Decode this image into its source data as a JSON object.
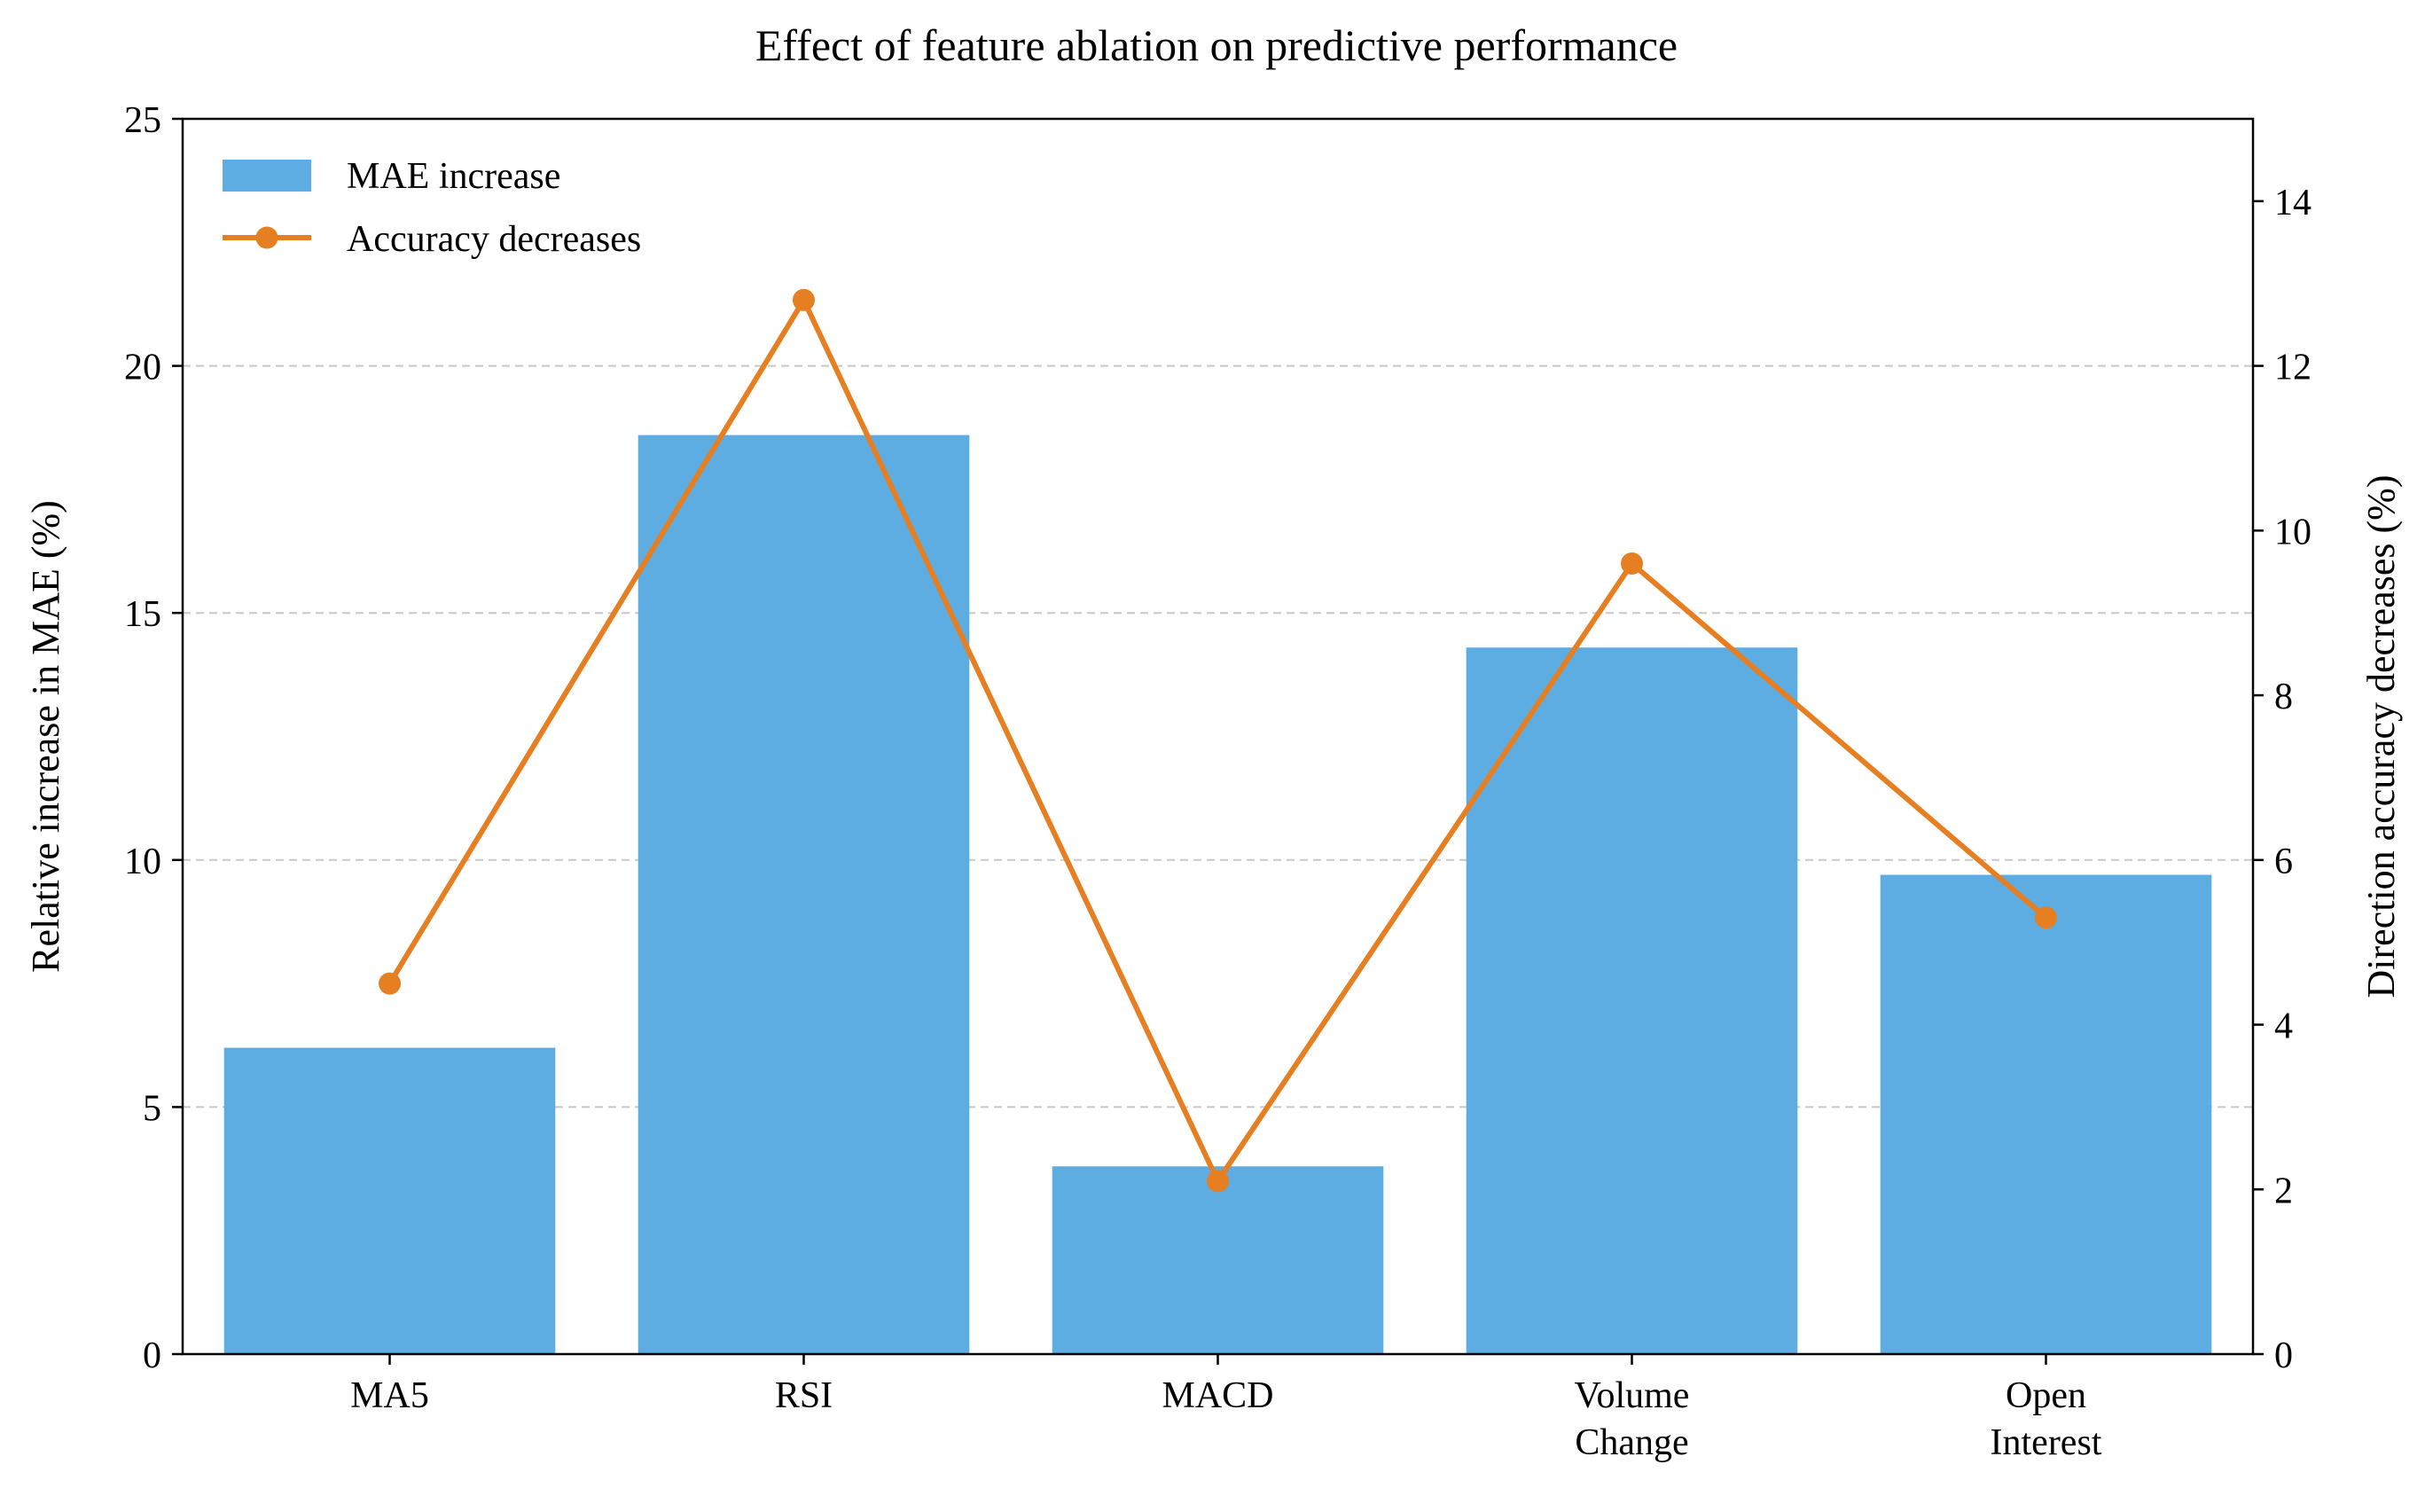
{
  "chart_data": {
    "type": "bar",
    "title": "Effect of feature ablation on predictive performance",
    "categories": [
      [
        "MA5"
      ],
      [
        "RSI"
      ],
      [
        "MACD"
      ],
      [
        "Volume",
        "Change"
      ],
      [
        "Open",
        "Interest"
      ]
    ],
    "ylabel": "Relative increase in MAE (%)",
    "ylabel_right": "Direction accuracy decreases (%)",
    "ylim": [
      0,
      25
    ],
    "ylim_right": [
      0,
      15
    ],
    "yticks": [
      0,
      5,
      10,
      15,
      20,
      25
    ],
    "yticks_right": [
      0,
      2,
      4,
      6,
      8,
      10,
      12,
      14
    ],
    "grid": "horizontal dashed (left axis)",
    "legend_position": "top-left",
    "series": [
      {
        "name": "MAE increase",
        "type": "bar",
        "axis": "left",
        "color": "#5DADE2",
        "values": [
          6.2,
          18.6,
          3.8,
          14.3,
          9.7
        ]
      },
      {
        "name": "Accuracy decreases",
        "type": "line",
        "axis": "right",
        "color": "#E67E22",
        "marker": "circle",
        "values": [
          4.5,
          12.8,
          2.1,
          9.6,
          5.3
        ]
      }
    ]
  }
}
